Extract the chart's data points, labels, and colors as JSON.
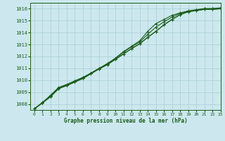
{
  "title": "Graphe pression niveau de la mer (hPa)",
  "background_color": "#cce8ee",
  "grid_color": "#aacdd6",
  "line_color": "#1a5c1a",
  "marker_color": "#1a5c1a",
  "xlim": [
    -0.5,
    23
  ],
  "ylim": [
    1007.5,
    1016.5
  ],
  "yticks": [
    1008,
    1009,
    1010,
    1011,
    1012,
    1013,
    1014,
    1015,
    1016
  ],
  "xticks": [
    0,
    1,
    2,
    3,
    4,
    5,
    6,
    7,
    8,
    9,
    10,
    11,
    12,
    13,
    14,
    15,
    16,
    17,
    18,
    19,
    20,
    21,
    22,
    23
  ],
  "series": [
    [
      1007.6,
      1008.1,
      1008.6,
      1009.3,
      1009.55,
      1009.85,
      1010.15,
      1010.55,
      1010.95,
      1011.3,
      1011.75,
      1012.2,
      1012.65,
      1013.05,
      1013.6,
      1014.1,
      1014.65,
      1015.1,
      1015.5,
      1015.75,
      1015.85,
      1015.95,
      1015.95,
      1016.0
    ],
    [
      1007.6,
      1008.15,
      1008.7,
      1009.35,
      1009.6,
      1009.9,
      1010.2,
      1010.6,
      1011.0,
      1011.35,
      1011.8,
      1012.35,
      1012.8,
      1013.2,
      1013.85,
      1014.45,
      1014.9,
      1015.3,
      1015.6,
      1015.8,
      1015.9,
      1016.0,
      1016.0,
      1016.05
    ],
    [
      1007.6,
      1008.1,
      1008.75,
      1009.4,
      1009.65,
      1009.95,
      1010.25,
      1010.6,
      1011.0,
      1011.4,
      1011.85,
      1012.4,
      1012.85,
      1013.3,
      1014.1,
      1014.75,
      1015.1,
      1015.45,
      1015.65,
      1015.82,
      1015.92,
      1016.02,
      1016.02,
      1016.08
    ],
    [
      1007.6,
      1008.1,
      1008.65,
      1009.3,
      1009.55,
      1009.85,
      1010.15,
      1010.55,
      1010.95,
      1011.3,
      1011.75,
      1012.2,
      1012.65,
      1013.05,
      1013.6,
      1014.1,
      1014.65,
      1015.1,
      1015.5,
      1015.75,
      1015.85,
      1015.95,
      1015.95,
      1016.0
    ]
  ]
}
